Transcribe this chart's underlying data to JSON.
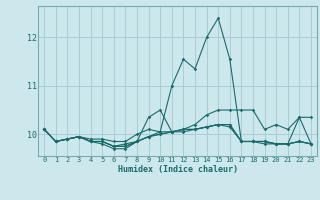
{
  "title": "",
  "xlabel": "Humidex (Indice chaleur)",
  "xlim": [
    -0.5,
    23.5
  ],
  "ylim": [
    9.55,
    12.65
  ],
  "yticks": [
    10,
    11,
    12
  ],
  "xticks": [
    0,
    1,
    2,
    3,
    4,
    5,
    6,
    7,
    8,
    9,
    10,
    11,
    12,
    13,
    14,
    15,
    16,
    17,
    18,
    19,
    20,
    21,
    22,
    23
  ],
  "background_color": "#cce8ec",
  "grid_color": "#aaccd4",
  "line_color": "#1a6b6b",
  "lines": [
    [
      10.1,
      9.85,
      9.9,
      9.95,
      9.9,
      9.9,
      9.85,
      9.85,
      10.0,
      10.1,
      10.05,
      11.0,
      11.55,
      11.35,
      12.0,
      12.4,
      11.55,
      9.85,
      9.85,
      9.8,
      9.8,
      9.8,
      10.35,
      9.8
    ],
    [
      10.1,
      9.85,
      9.9,
      9.95,
      9.85,
      9.8,
      9.7,
      9.7,
      9.85,
      9.95,
      10.05,
      10.05,
      10.1,
      10.2,
      10.4,
      10.5,
      10.5,
      10.5,
      10.5,
      10.1,
      10.2,
      10.1,
      10.35,
      10.35
    ],
    [
      10.1,
      9.85,
      9.9,
      9.95,
      9.85,
      9.85,
      9.75,
      9.8,
      9.85,
      9.95,
      10.0,
      10.05,
      10.05,
      10.1,
      10.15,
      10.2,
      10.2,
      9.85,
      9.85,
      9.85,
      9.8,
      9.8,
      9.85,
      9.8
    ],
    [
      10.1,
      9.85,
      9.9,
      9.95,
      9.85,
      9.85,
      9.75,
      9.75,
      9.85,
      9.95,
      10.0,
      10.05,
      10.1,
      10.1,
      10.15,
      10.2,
      10.15,
      9.85,
      9.85,
      9.85,
      9.8,
      9.8,
      9.85,
      9.8
    ],
    [
      10.1,
      9.85,
      9.9,
      9.95,
      9.85,
      9.85,
      9.75,
      9.75,
      9.85,
      10.35,
      10.5,
      10.05,
      10.1,
      10.1,
      10.15,
      10.2,
      10.2,
      9.85,
      9.85,
      9.85,
      9.8,
      9.8,
      9.85,
      9.8
    ]
  ]
}
